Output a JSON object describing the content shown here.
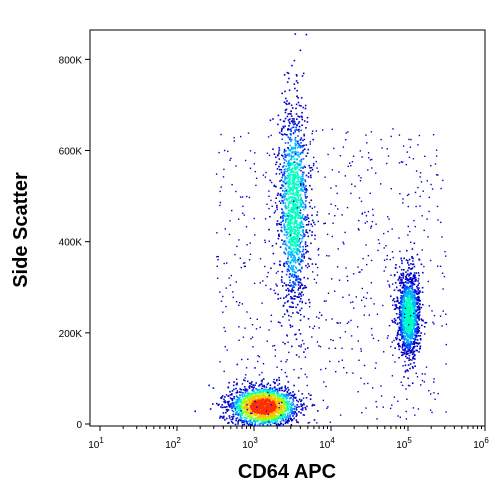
{
  "chart_data": {
    "type": "scatter",
    "title": "",
    "xlabel": "CD64 APC",
    "ylabel": "Side Scatter",
    "xscale": "log",
    "xlim": [
      10,
      1000000
    ],
    "ylim": [
      0,
      860000
    ],
    "grid": false,
    "legend": "none",
    "x_ticks": [
      {
        "value": 10,
        "base": "10",
        "exp": "1"
      },
      {
        "value": 100,
        "base": "10",
        "exp": "2"
      },
      {
        "value": 1000,
        "base": "10",
        "exp": "3"
      },
      {
        "value": 10000,
        "base": "10",
        "exp": "4"
      },
      {
        "value": 100000,
        "base": "10",
        "exp": "5"
      },
      {
        "value": 1000000,
        "base": "10",
        "exp": "6"
      }
    ],
    "y_ticks": [
      {
        "value": 0,
        "label": "0"
      },
      {
        "value": 200000,
        "label": "200K"
      },
      {
        "value": 400000,
        "label": "400K"
      },
      {
        "value": 600000,
        "label": "600K"
      },
      {
        "value": 800000,
        "label": "800K"
      }
    ],
    "populations": [
      {
        "center_x": 1300,
        "center_y": 40000,
        "spread_log_x": 0.22,
        "spread_y": 22000,
        "density": "high"
      },
      {
        "center_x": 3200,
        "center_y": 480000,
        "spread_log_x": 0.1,
        "spread_y": 110000,
        "density": "medium"
      },
      {
        "center_x": 100000,
        "center_y": 240000,
        "spread_log_x": 0.07,
        "spread_y": 45000,
        "density": "medium"
      }
    ],
    "density_colors": [
      "#0000c8",
      "#0050ff",
      "#00b4ff",
      "#00ffc0",
      "#a0ff00",
      "#ffc000",
      "#ff3000"
    ]
  }
}
